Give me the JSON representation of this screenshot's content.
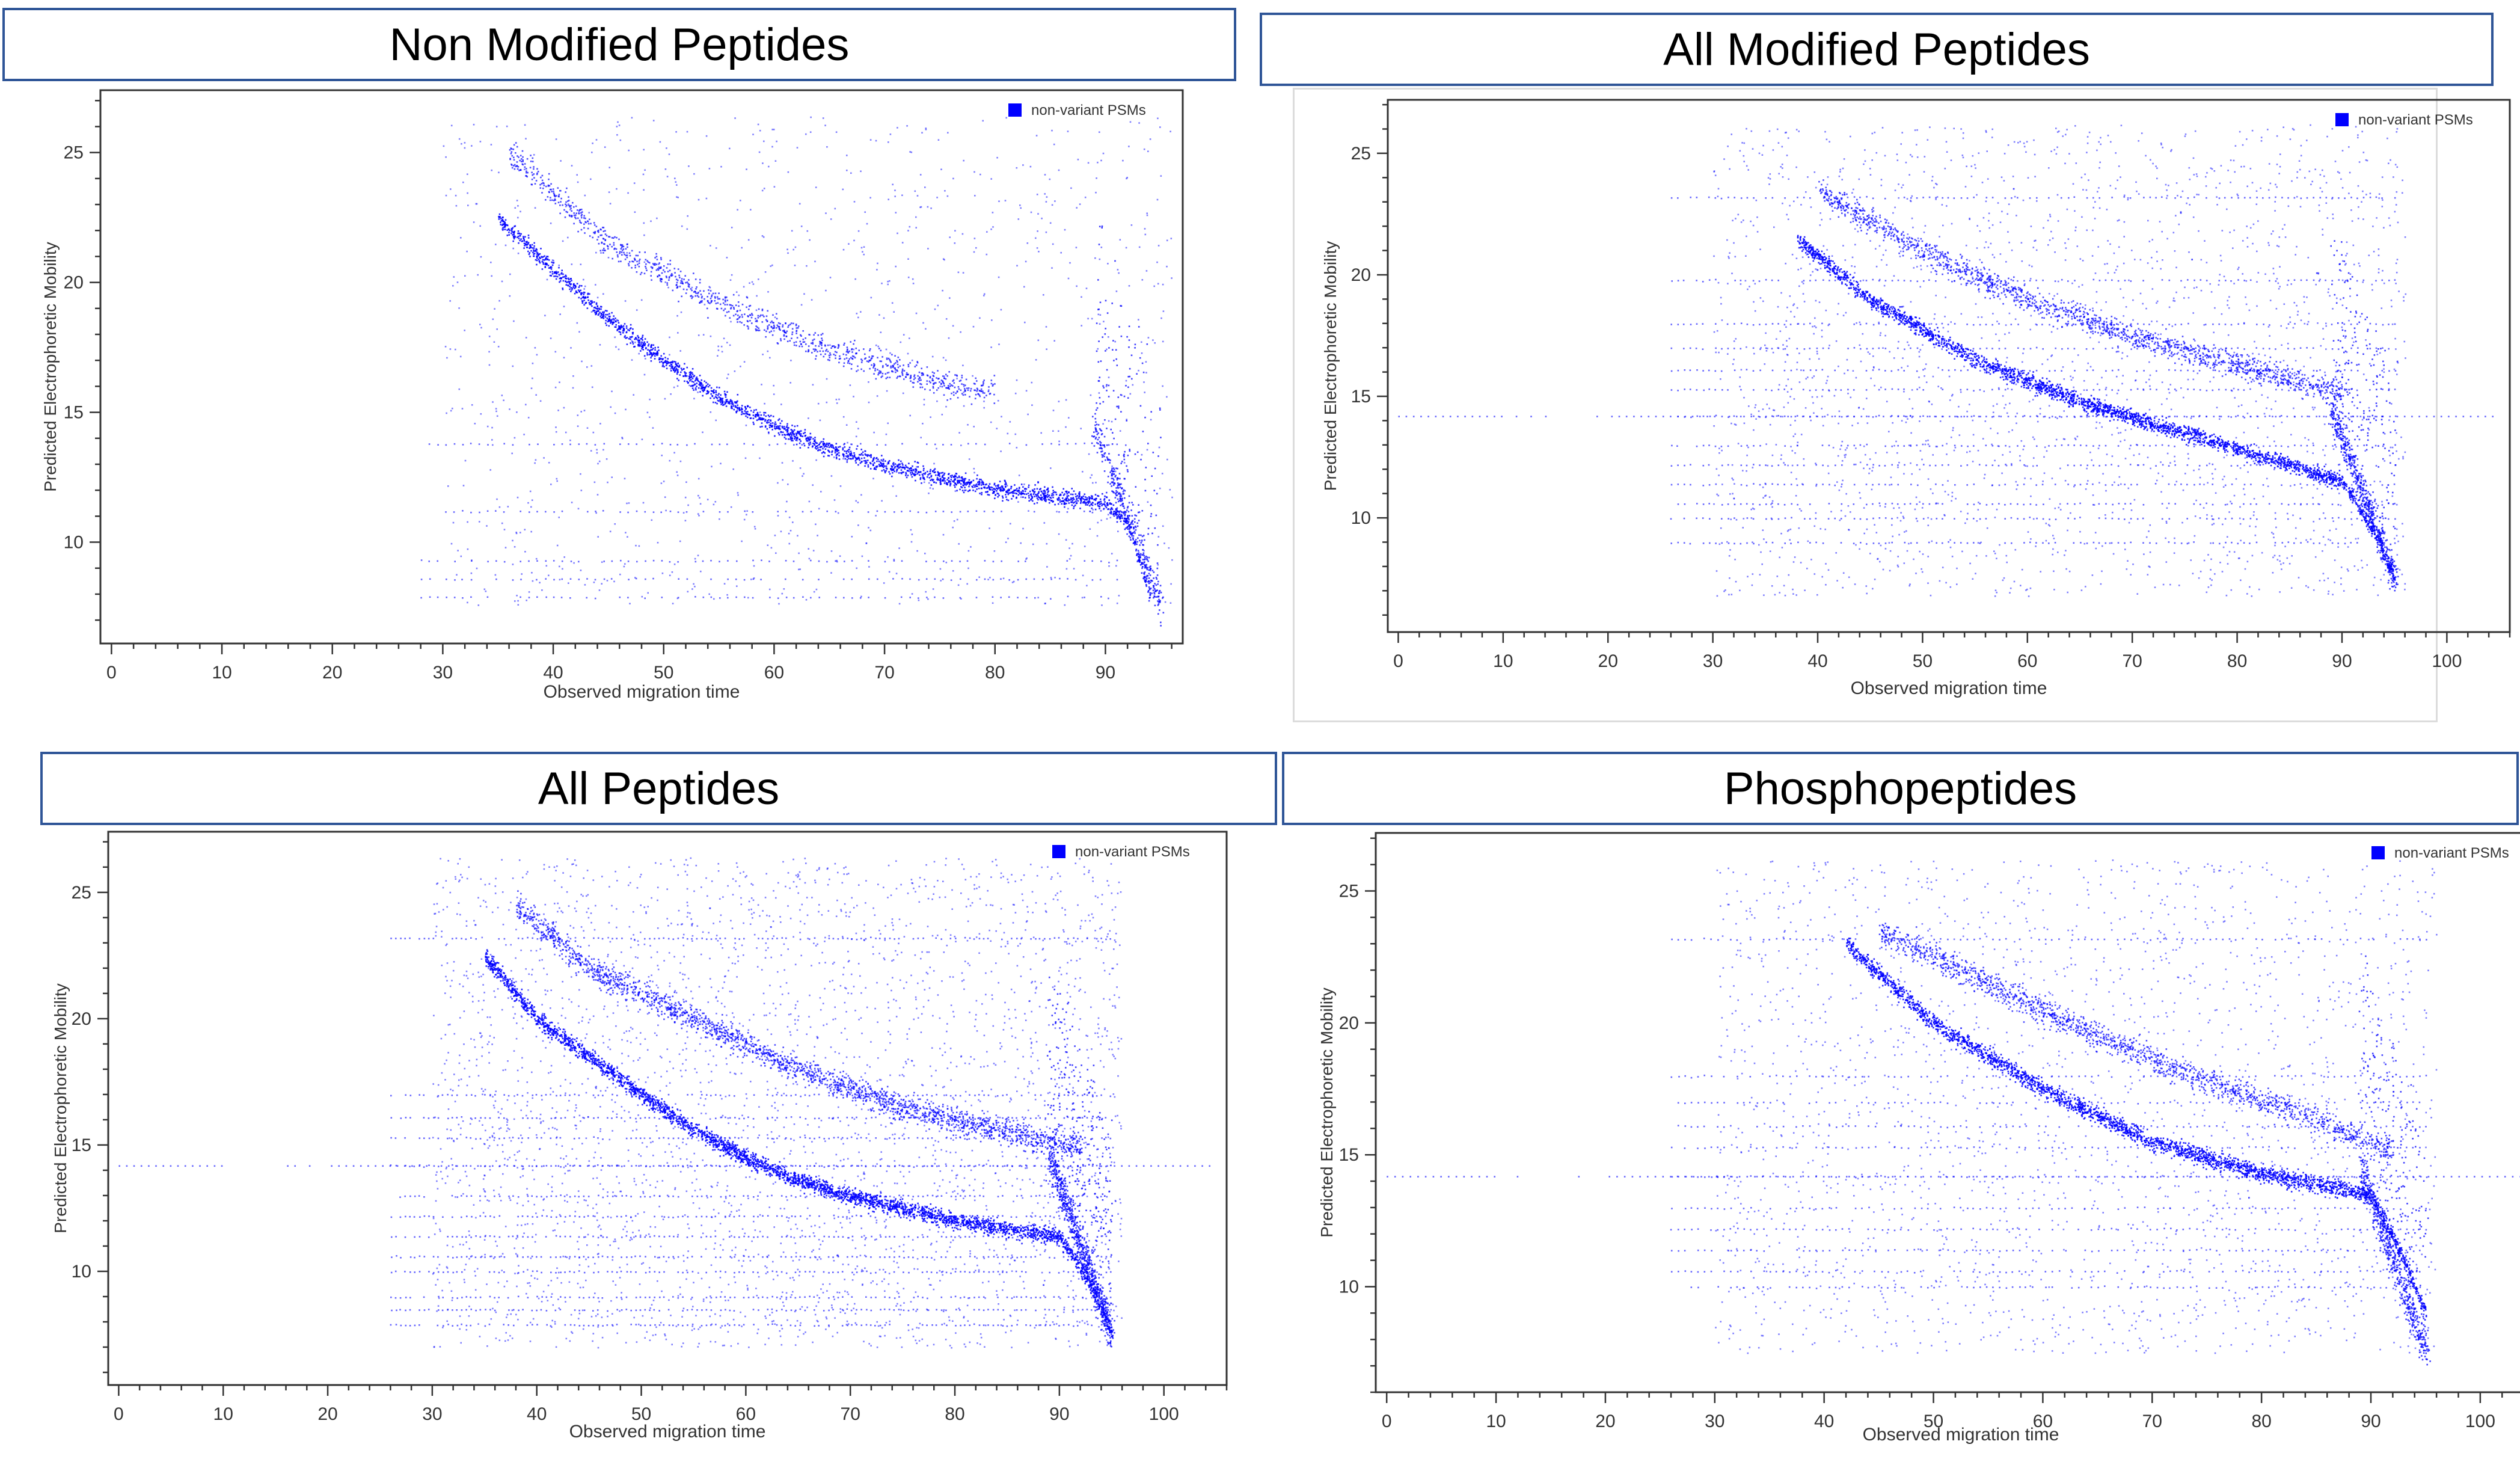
{
  "panels": [
    {
      "title": "Non Modified Peptides"
    },
    {
      "title": "All Modified Peptides"
    },
    {
      "title": "All Peptides"
    },
    {
      "title": "Phosphopeptides"
    }
  ],
  "colors": {
    "points": "#0000ff",
    "title_border": "#2f5597",
    "axis": "#333333"
  },
  "chart_data": [
    {
      "type": "scatter",
      "title": "Non Modified Peptides",
      "xlabel": "Observed migration time",
      "ylabel": "Predicted Electrophoretic Mobility",
      "xlim": [
        -1,
        97
      ],
      "ylim": [
        6.1,
        27.4
      ],
      "xticks": [
        0,
        10,
        20,
        30,
        40,
        50,
        60,
        70,
        80,
        90
      ],
      "yticks": [
        10,
        15,
        20,
        25
      ],
      "legend": {
        "label": "non-variant PSMs",
        "position": "top-right"
      },
      "grid": false,
      "series": [
        {
          "name": "non-variant PSMs",
          "trend": [
            [
              35,
              22.5
            ],
            [
              40,
              20.5
            ],
            [
              45,
              18.6
            ],
            [
              50,
              17.0
            ],
            [
              55,
              15.6
            ],
            [
              60,
              14.5
            ],
            [
              65,
              13.6
            ],
            [
              70,
              13.0
            ],
            [
              75,
              12.5
            ],
            [
              80,
              12.1
            ],
            [
              85,
              11.8
            ],
            [
              90,
              11.5
            ],
            [
              92,
              10.8
            ],
            [
              94,
              8.0
            ]
          ],
          "upper_band": [
            [
              36,
              25
            ],
            [
              45,
              21.5
            ],
            [
              55,
              19.2
            ],
            [
              65,
              17.4
            ],
            [
              75,
              16.2
            ],
            [
              80,
              15.8
            ]
          ],
          "lines_y": [
            11.2,
            9.3,
            8.6,
            7.9,
            13.8
          ],
          "lines_x": [
            28,
            92
          ],
          "density": 1
        }
      ]
    },
    {
      "type": "scatter",
      "title": "All Modified Peptides",
      "xlabel": "Observed migration time",
      "ylabel": "Predicted Electrophoretic Mobility",
      "xlim": [
        -1,
        106
      ],
      "ylim": [
        5.3,
        27.2
      ],
      "xticks": [
        0,
        10,
        20,
        30,
        40,
        50,
        60,
        70,
        80,
        90,
        100
      ],
      "yticks": [
        10,
        15,
        20,
        25
      ],
      "legend": {
        "label": "non-variant PSMs",
        "position": "top-right"
      },
      "grid": false,
      "series": [
        {
          "name": "non-variant PSMs",
          "trend": [
            [
              38,
              21.5
            ],
            [
              45,
              19.0
            ],
            [
              55,
              16.5
            ],
            [
              65,
              14.8
            ],
            [
              75,
              13.5
            ],
            [
              85,
              12.2
            ],
            [
              90,
              11.5
            ],
            [
              93,
              9.5
            ],
            [
              95,
              7.5
            ]
          ],
          "upper_band": [
            [
              40,
              23.5
            ],
            [
              50,
              21.0
            ],
            [
              60,
              19.0
            ],
            [
              70,
              17.5
            ],
            [
              80,
              16.3
            ],
            [
              90,
              15.2
            ]
          ],
          "lines_y": [
            14.2,
            13.0,
            12.2,
            11.4,
            10.6,
            10.0,
            9.0,
            15.3,
            16.1,
            17.0,
            18.0,
            19.8,
            23.2
          ],
          "lines_x": [
            26,
            95
          ],
          "long_line": 14.2,
          "density": 2
        }
      ]
    },
    {
      "type": "scatter",
      "title": "All Peptides",
      "xlabel": "Observed migration time",
      "ylabel": "Predicted Electrophoretic Mobility",
      "xlim": [
        -1,
        106
      ],
      "ylim": [
        5.5,
        27.4
      ],
      "xticks": [
        0,
        10,
        20,
        30,
        40,
        50,
        60,
        70,
        80,
        90,
        100
      ],
      "yticks": [
        10,
        15,
        20,
        25
      ],
      "legend": {
        "label": "non-variant PSMs",
        "position": "top-right"
      },
      "grid": false,
      "series": [
        {
          "name": "non-variant PSMs",
          "trend": [
            [
              35,
              22.5
            ],
            [
              40,
              20.0
            ],
            [
              45,
              18.5
            ],
            [
              50,
              17.0
            ],
            [
              55,
              15.6
            ],
            [
              60,
              14.5
            ],
            [
              65,
              13.6
            ],
            [
              70,
              13.0
            ],
            [
              75,
              12.5
            ],
            [
              80,
              12.0
            ],
            [
              90,
              11.4
            ],
            [
              93,
              9.5
            ],
            [
              95,
              7.5
            ]
          ],
          "upper_band": [
            [
              38,
              24.5
            ],
            [
              45,
              22.0
            ],
            [
              55,
              20.0
            ],
            [
              65,
              18.0
            ],
            [
              75,
              16.5
            ],
            [
              85,
              15.5
            ],
            [
              92,
              15.0
            ]
          ],
          "lines_y": [
            14.2,
            13.0,
            12.2,
            11.4,
            10.6,
            10.0,
            9.0,
            8.5,
            7.9,
            15.3,
            16.1,
            17.0,
            23.2
          ],
          "lines_x": [
            26,
            95
          ],
          "long_line": 14.2,
          "density": 3
        }
      ]
    },
    {
      "type": "scatter",
      "title": "Phosphopeptides",
      "xlabel": "Observed migration time",
      "ylabel": "Predicted Electrophoretic Mobility",
      "xlim": [
        -1,
        106
      ],
      "ylim": [
        6.0,
        27.2
      ],
      "xticks": [
        0,
        10,
        20,
        30,
        40,
        50,
        60,
        70,
        80,
        90,
        100
      ],
      "yticks": [
        10,
        15,
        20,
        25
      ],
      "legend": {
        "label": "non-variant PSMs",
        "position": "top-right"
      },
      "grid": false,
      "series": [
        {
          "name": "non-variant PSMs",
          "trend": [
            [
              42,
              23.0
            ],
            [
              50,
              20.0
            ],
            [
              60,
              17.5
            ],
            [
              70,
              15.5
            ],
            [
              80,
              14.3
            ],
            [
              90,
              13.5
            ],
            [
              93,
              11.0
            ],
            [
              95,
              9.0
            ]
          ],
          "upper_band": [
            [
              45,
              23.5
            ],
            [
              55,
              21.5
            ],
            [
              65,
              19.5
            ],
            [
              75,
              17.8
            ],
            [
              85,
              16.3
            ],
            [
              92,
              15.2
            ]
          ],
          "lines_y": [
            14.2,
            13.0,
            12.2,
            11.4,
            10.6,
            10.0,
            15.3,
            16.1,
            17.0,
            18.0,
            23.2
          ],
          "lines_x": [
            26,
            95
          ],
          "long_line": 14.2,
          "density": 2
        }
      ]
    }
  ]
}
